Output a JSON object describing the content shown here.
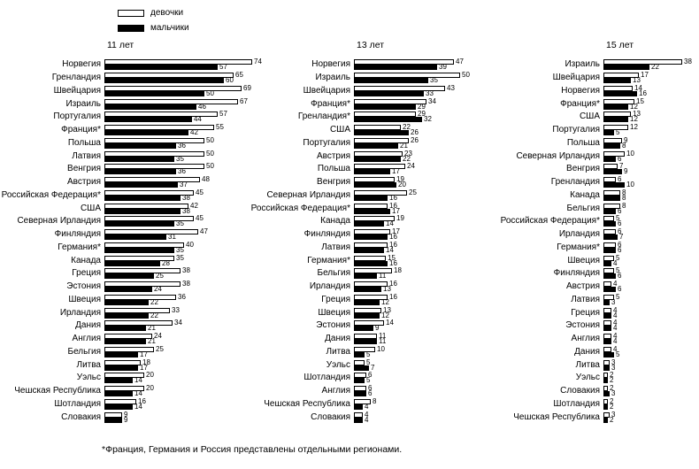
{
  "legend": {
    "girls_label": "девочки",
    "boys_label": "мальчики"
  },
  "footnote": "*Франция, Германия и Россия представлены отдельными регионами.",
  "colors": {
    "girls_bar": "#ffffff",
    "boys_bar": "#000000",
    "text": "#000000",
    "background": "#ffffff"
  },
  "chart_data": [
    {
      "type": "bar",
      "orientation": "horizontal",
      "title": "11 лет",
      "legend_position": "top-left",
      "grid": false,
      "axes_shown": false,
      "value_labels": true,
      "xlim": [
        0,
        80
      ],
      "categories": [
        "Норвегия",
        "Гренландия",
        "Швейцария",
        "Израиль",
        "Португалия",
        "Франция*",
        "Польша",
        "Латвия",
        "Венгрия",
        "Австрия",
        "Российская Федерация*",
        "США",
        "Северная Ирландия",
        "Финляндия",
        "Германия*",
        "Канада",
        "Греция",
        "Эстония",
        "Швеция",
        "Ирландия",
        "Дания",
        "Англия",
        "Бельгия",
        "Литва",
        "Уэльс",
        "Чешская Республика",
        "Шотландия",
        "Словакия"
      ],
      "series": [
        {
          "name": "девочки",
          "values": [
            74,
            65,
            69,
            67,
            57,
            55,
            50,
            50,
            50,
            48,
            45,
            42,
            45,
            47,
            40,
            35,
            38,
            38,
            36,
            33,
            34,
            24,
            25,
            18,
            20,
            20,
            16,
            9
          ]
        },
        {
          "name": "мальчики",
          "values": [
            57,
            60,
            50,
            46,
            44,
            42,
            36,
            35,
            36,
            37,
            38,
            38,
            35,
            31,
            35,
            28,
            25,
            24,
            22,
            22,
            21,
            21,
            17,
            17,
            14,
            14,
            14,
            9
          ]
        }
      ]
    },
    {
      "type": "bar",
      "orientation": "horizontal",
      "title": "13 лет",
      "grid": false,
      "axes_shown": false,
      "value_labels": true,
      "xlim": [
        0,
        55
      ],
      "categories": [
        "Норвегия",
        "Израиль",
        "Швейцария",
        "Франция*",
        "Гренландия*",
        "США",
        "Португалия",
        "Австрия",
        "Польша",
        "Венгрия",
        "Северная Ирландия",
        "Российская Федерация*",
        "Канада",
        "Финляндия",
        "Латвия",
        "Германия*",
        "Бельгия",
        "Ирландия",
        "Греция",
        "Швеция",
        "Эстония",
        "Дания",
        "Литва",
        "Уэльс",
        "Шотландия",
        "Англия",
        "Чешская Республика",
        "Словакия"
      ],
      "series": [
        {
          "name": "девочки",
          "values": [
            47,
            50,
            43,
            34,
            29,
            22,
            26,
            23,
            24,
            19,
            25,
            16,
            19,
            17,
            16,
            15,
            18,
            16,
            16,
            13,
            14,
            11,
            10,
            5,
            6,
            6,
            8,
            4
          ]
        },
        {
          "name": "мальчики",
          "values": [
            39,
            35,
            33,
            29,
            32,
            26,
            21,
            22,
            17,
            20,
            16,
            17,
            14,
            16,
            14,
            16,
            11,
            13,
            12,
            12,
            9,
            11,
            5,
            7,
            5,
            6,
            4,
            4
          ]
        }
      ]
    },
    {
      "type": "bar",
      "orientation": "horizontal",
      "title": "15 лет",
      "grid": false,
      "axes_shown": false,
      "value_labels": true,
      "xlim": [
        0,
        40
      ],
      "categories": [
        "Израиль",
        "Швейцария",
        "Норвегия",
        "Франция*",
        "США",
        "Португалия",
        "Польша",
        "Северная Ирландия",
        "Венгрия",
        "Гренландия",
        "Канада",
        "Бельгия",
        "Российская Федерация*",
        "Ирландия",
        "Германия*",
        "Швеция",
        "Финляндия",
        "Австрия",
        "Латвия",
        "Греция",
        "Эстония",
        "Англия",
        "Дания",
        "Литва",
        "Уэльс",
        "Словакия",
        "Шотландия",
        "Чешская Республика"
      ],
      "series": [
        {
          "name": "девочки",
          "values": [
            38,
            17,
            14,
            15,
            13,
            12,
            9,
            10,
            7,
            6,
            8,
            8,
            5,
            6,
            6,
            5,
            5,
            4,
            5,
            4,
            4,
            4,
            4,
            3,
            2,
            2,
            2,
            3
          ]
        },
        {
          "name": "мальчики",
          "values": [
            22,
            13,
            16,
            12,
            12,
            5,
            8,
            6,
            9,
            10,
            8,
            6,
            6,
            7,
            6,
            4,
            6,
            6,
            3,
            4,
            4,
            4,
            5,
            3,
            2,
            3,
            2,
            2
          ]
        }
      ]
    }
  ]
}
